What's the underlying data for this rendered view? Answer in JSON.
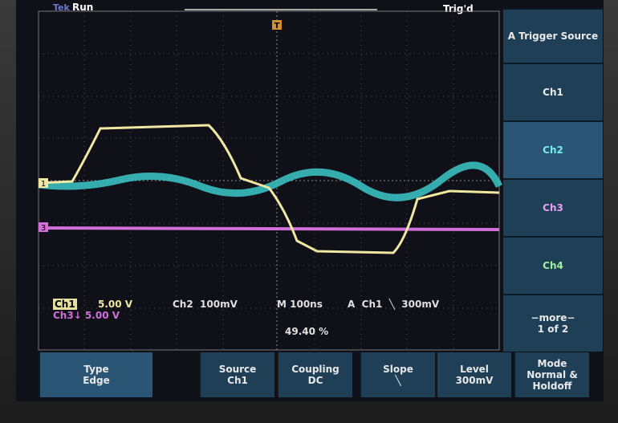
{
  "header": {
    "brand": "Tek",
    "status": "Run",
    "trigger_state": "Trig'd",
    "trigger_marker": "T"
  },
  "side_menu": {
    "title": "A Trigger Source",
    "items": [
      "Ch1",
      "Ch2",
      "Ch3",
      "Ch4"
    ],
    "more": "−more−",
    "page": "1 of 2"
  },
  "markers": {
    "ch1": "1",
    "ch3": "3"
  },
  "readout": {
    "ch1_label": "Ch1",
    "ch1_scale": "5.00 V",
    "ch2": "Ch2  100mV",
    "timebase": "M 100ns",
    "trigger": "A  Ch1  ╲  300mV",
    "ch3": "Ch3↓ 5.00 V",
    "trigger_position": "49.40 %"
  },
  "bottom_menu": [
    {
      "label": "Type",
      "value": "Edge"
    },
    {
      "label": "Source",
      "value": "Ch1"
    },
    {
      "label": "Coupling",
      "value": "DC"
    },
    {
      "label": "Slope",
      "value": "╲"
    },
    {
      "label": "Level",
      "value": "300mV"
    },
    {
      "label": "Mode",
      "value": "Normal & Holdoff"
    }
  ]
}
